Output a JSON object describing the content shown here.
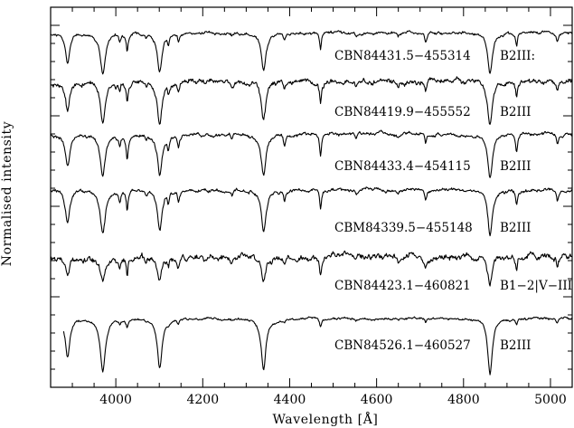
{
  "chart_data": {
    "type": "line",
    "title": "",
    "xlabel": "Wavelength [Å]",
    "ylabel": "Normalised intensity",
    "xlim": [
      3850,
      5050
    ],
    "x_ticks": [
      4000,
      4200,
      4400,
      4600,
      4800,
      5000
    ],
    "y_tick_labels": "none",
    "grid": false,
    "legend": "none",
    "lines": {
      "Hε": 3970,
      "H8": 3889,
      "H9": 3835,
      "Hδ": 4101,
      "Hγ": 4340,
      "Hβ": 4861,
      "HeI_4009": 4009,
      "HeI_4026": 4026,
      "HeI_4121": 4121,
      "HeI_4144": 4144,
      "HeI_4388": 4388,
      "HeI_4471": 4471,
      "HeI_4713": 4713,
      "HeI_4922": 4922,
      "HeI_5016": 5016,
      "OII_4070": 4070,
      "CII_4267": 4267,
      "SiIII_4553": 4553,
      "OII_4650": 4650
    },
    "series": [
      {
        "name": "CBN84431.5−455314",
        "spectral_type": "B2III:",
        "offset": 5,
        "noise": 0.01,
        "depth_h": 0.26,
        "depth_he": 0.07,
        "depth_metal": 0.02
      },
      {
        "name": "CBN84419.9−455552",
        "spectral_type": "B2III",
        "offset": 4,
        "noise": 0.018,
        "depth_h": 0.27,
        "depth_he": 0.07,
        "depth_metal": 0.03
      },
      {
        "name": "CBN84433.4−454115",
        "spectral_type": "B2III",
        "offset": 3,
        "noise": 0.012,
        "depth_h": 0.28,
        "depth_he": 0.09,
        "depth_metal": 0.03
      },
      {
        "name": "CBM84339.5−455148",
        "spectral_type": "B2III",
        "offset": 2,
        "noise": 0.012,
        "depth_h": 0.28,
        "depth_he": 0.08,
        "depth_metal": 0.03
      },
      {
        "name": "CBN84423.1−460821",
        "spectral_type": "B1−2|V−III",
        "offset": 1,
        "noise": 0.022,
        "depth_h": 0.16,
        "depth_he": 0.07,
        "depth_metal": 0.04
      },
      {
        "name": "CBN84526.1−460527",
        "spectral_type": "B2III",
        "offset": 0,
        "noise": 0.008,
        "depth_h": 0.34,
        "depth_he": 0.03,
        "depth_metal": 0.01
      }
    ]
  }
}
